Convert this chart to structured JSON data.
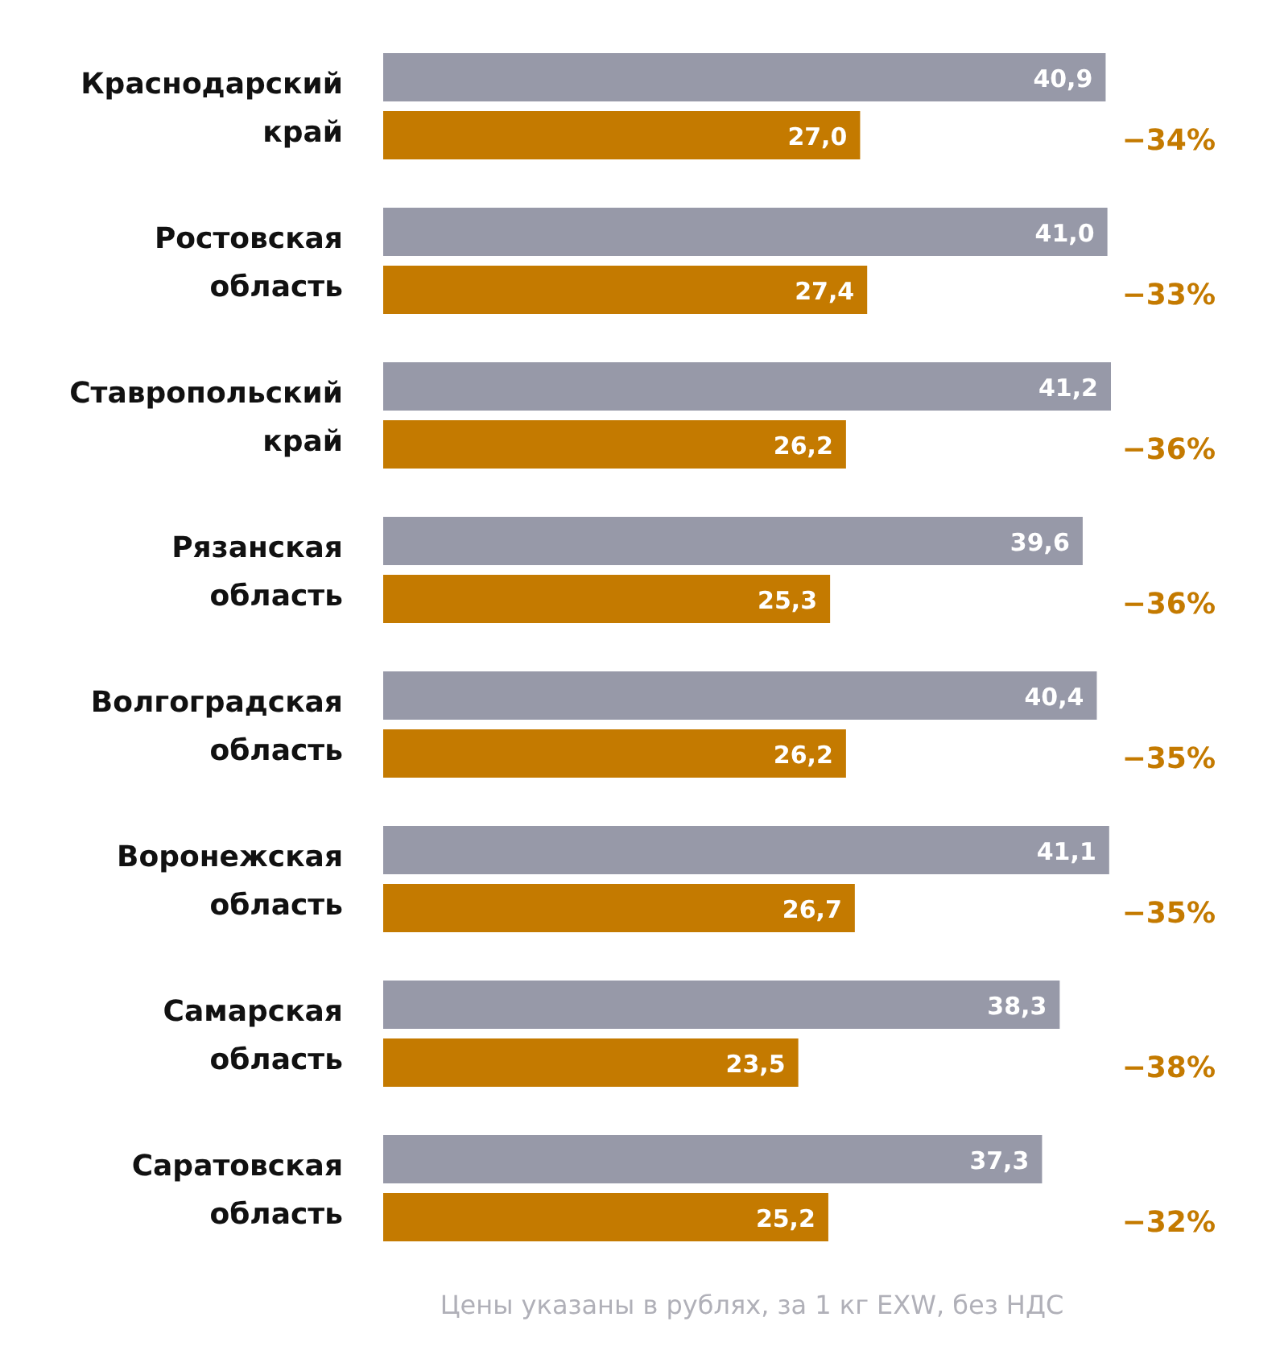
{
  "chart_data": {
    "type": "bar",
    "orientation": "horizontal",
    "categories": [
      "Краснодарский край",
      "Ростовская область",
      "Ставропольский край",
      "Рязанская область",
      "Волгоградская область",
      "Воронежская область",
      "Самарская область",
      "Саратовская область"
    ],
    "series": [
      {
        "color": "#9799a8",
        "values": [
          40.9,
          41.0,
          41.2,
          39.6,
          40.4,
          41.1,
          38.3,
          37.3
        ],
        "value_labels": [
          "40,9",
          "41,0",
          "41,2",
          "39,6",
          "40,4",
          "41,1",
          "38,3",
          "37,3"
        ]
      },
      {
        "color": "#c47a00",
        "values": [
          27.0,
          27.4,
          26.2,
          25.3,
          26.2,
          26.7,
          23.5,
          25.2
        ],
        "value_labels": [
          "27,0",
          "27,4",
          "26,2",
          "25,3",
          "26,2",
          "26,7",
          "23,5",
          "25,2"
        ]
      }
    ],
    "annotations": [
      "−34%",
      "−33%",
      "−36%",
      "−36%",
      "−35%",
      "−35%",
      "−38%",
      "−32%",
      "Цены указаны в рублях, за 1 кг EXW, без НДС"
    ]
  }
}
